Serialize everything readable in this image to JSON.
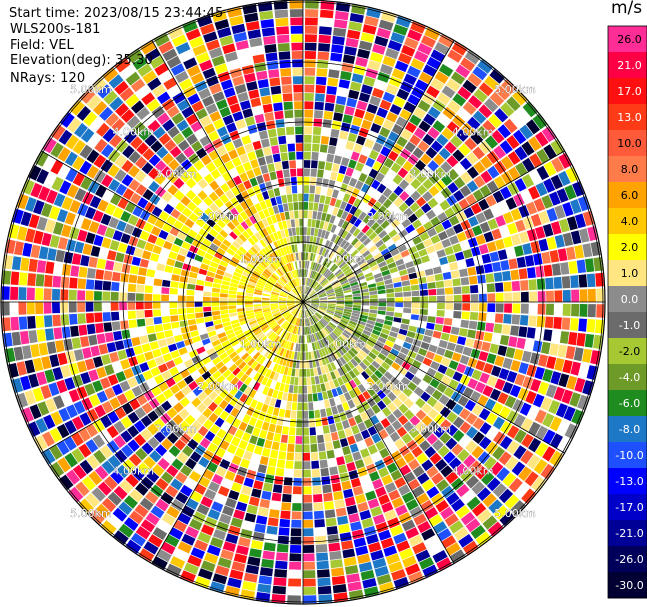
{
  "header": {
    "start_time": "Start time: 2023/08/15 23:44:45",
    "instrument": "WLS200s-181",
    "field": "Field: VEL",
    "elevation": "Elevation(deg): 35.30",
    "nrays": "NRays: 120"
  },
  "colorbar": {
    "unit": "m/s",
    "bins": [
      {
        "label": "26.0",
        "color": "#ff2d95"
      },
      {
        "label": "21.0",
        "color": "#ff0044"
      },
      {
        "label": "17.0",
        "color": "#ff0f0f"
      },
      {
        "label": "13.0",
        "color": "#ff3a16"
      },
      {
        "label": "10.0",
        "color": "#ff5a3a"
      },
      {
        "label": "8.0",
        "color": "#ff7b49"
      },
      {
        "label": "6.0",
        "color": "#ffa300"
      },
      {
        "label": "4.0",
        "color": "#ffc800"
      },
      {
        "label": "2.0",
        "color": "#ffff00"
      },
      {
        "label": "1.0",
        "color": "#ffe680"
      },
      {
        "label": "0.0",
        "color": "#8c8c8c"
      },
      {
        "label": "-1.0",
        "color": "#6b6b6b"
      },
      {
        "label": "-2.0",
        "color": "#a6c832"
      },
      {
        "label": "-4.0",
        "color": "#6e9b28"
      },
      {
        "label": "-6.0",
        "color": "#1e8c1e"
      },
      {
        "label": "-8.0",
        "color": "#1e78c8"
      },
      {
        "label": "-10.0",
        "color": "#1e50ff"
      },
      {
        "label": "-13.0",
        "color": "#0000ff"
      },
      {
        "label": "-17.0",
        "color": "#0000c8"
      },
      {
        "label": "-21.0",
        "color": "#000096"
      },
      {
        "label": "-26.0",
        "color": "#00005a"
      },
      {
        "label": "-30.0",
        "color": "#000032"
      }
    ]
  },
  "range_rings": [
    {
      "label": "1.00km"
    },
    {
      "label": "2.00km"
    },
    {
      "label": "3.00km"
    },
    {
      "label": "4.00km"
    },
    {
      "label": "5.00km"
    }
  ],
  "palettes": {
    "noise": [
      "#ff2d95",
      "#ff0044",
      "#ff0f0f",
      "#ff3a16",
      "#ff5a3a",
      "#ff7b49",
      "#ffa300",
      "#ffc800",
      "#ffff00",
      "#ffe680",
      "#8c8c8c",
      "#6b6b6b",
      "#a6c832",
      "#6e9b28",
      "#1e8c1e",
      "#1e78c8",
      "#1e50ff",
      "#0000ff",
      "#0000c8",
      "#000096",
      "#00005a",
      "#000032",
      "#ffffff"
    ],
    "west": [
      "#ffff00",
      "#ffff00",
      "#ffff00",
      "#ffc800",
      "#ffa300",
      "#ffe680",
      "#ffff00"
    ],
    "east": [
      "#a6c832",
      "#8c8c8c",
      "#6e9b28",
      "#a6c832",
      "#8c8c8c",
      "#ffe680"
    ],
    "east_core": [
      "#6e9b28",
      "#1e8c1e",
      "#a6c832",
      "#8c8c8c"
    ]
  }
}
